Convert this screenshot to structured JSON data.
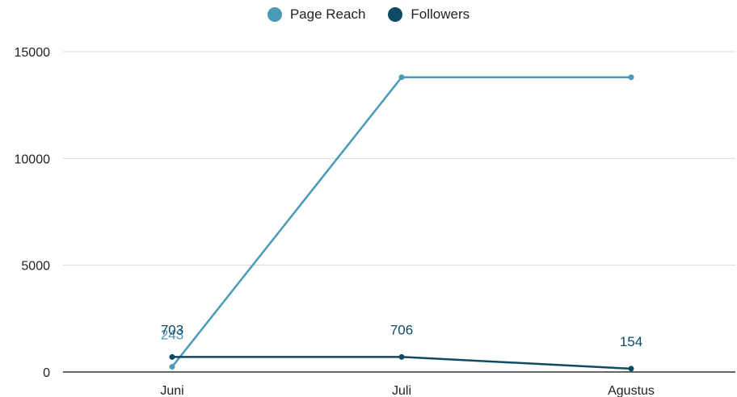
{
  "chart_data": {
    "type": "line",
    "categories": [
      "Juni",
      "Juli",
      "Agustus"
    ],
    "series": [
      {
        "name": "Page Reach",
        "values": [
          243,
          13800,
          13800
        ],
        "color": "#4a9ab8",
        "data_labels": [
          "243",
          "",
          ""
        ]
      },
      {
        "name": "Followers",
        "values": [
          703,
          706,
          154
        ],
        "color": "#0e4a63",
        "data_labels": [
          "703",
          "706",
          "154"
        ]
      }
    ],
    "yticks": [
      "0",
      "5000",
      "10000",
      "15000"
    ],
    "ylim": [
      0,
      15000
    ],
    "grid": true,
    "legend": "top-center",
    "title": "",
    "xlabel": "",
    "ylabel": ""
  }
}
